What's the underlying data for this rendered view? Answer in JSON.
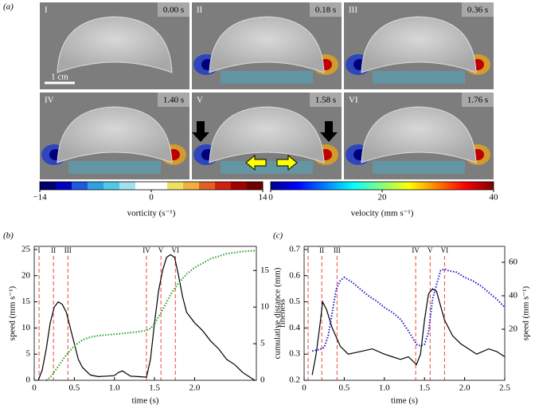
{
  "figure_a": {
    "label": "(a)",
    "frames": [
      {
        "label": "I",
        "time": "0.00 s"
      },
      {
        "label": "II",
        "time": "0.18 s"
      },
      {
        "label": "III",
        "time": "0.36 s"
      },
      {
        "label": "IV",
        "time": "1.40 s"
      },
      {
        "label": "V",
        "time": "1.58 s"
      },
      {
        "label": "VI",
        "time": "1.76 s"
      }
    ],
    "scale_bar": "1 cm",
    "colorbars": [
      {
        "label": "vorticity (s⁻¹)",
        "lim": [
          -14,
          14
        ],
        "ticks": [
          {
            "value": -14,
            "label": "−14"
          },
          0,
          14
        ]
      },
      {
        "label": "velocity (mm s⁻¹)",
        "lim": [
          0,
          40
        ],
        "ticks": [
          0,
          20,
          40
        ]
      }
    ]
  },
  "chart_data": [
    {
      "type": "line",
      "panel_label": "(b)",
      "xlabel": "time (s)",
      "ylabel": "speed (mm s⁻¹)",
      "y2label": "cumulative distance (mm)",
      "xlim": [
        0,
        2.77
      ],
      "xticks": [
        0,
        0.5,
        {
          "value": 1.0,
          "label": "1.0"
        },
        1.5,
        {
          "value": 2.0,
          "label": "2.0"
        }
      ],
      "ylim": [
        0,
        25.6
      ],
      "yticks": [
        0,
        5,
        10,
        15,
        20,
        25
      ],
      "y2lim": [
        0,
        18.3
      ],
      "y2ticks": [
        0,
        5,
        10,
        15
      ],
      "events": [
        {
          "label": "I",
          "time": 0.06
        },
        {
          "label": "II",
          "time": 0.24
        },
        {
          "label": "III",
          "time": 0.42
        },
        {
          "label": "IV",
          "time": 1.4
        },
        {
          "label": "V",
          "time": 1.58
        },
        {
          "label": "VI",
          "time": 1.76
        }
      ],
      "event_color": "#e8483c",
      "series": [
        {
          "color": "#000000",
          "style": "solid",
          "axis": "y",
          "x": [
            0.05,
            0.1,
            0.15,
            0.2,
            0.25,
            0.3,
            0.35,
            0.4,
            0.45,
            0.5,
            0.55,
            0.6,
            0.7,
            0.8,
            0.9,
            1.0,
            1.05,
            1.1,
            1.15,
            1.2,
            1.3,
            1.4,
            1.45,
            1.5,
            1.55,
            1.6,
            1.65,
            1.7,
            1.75,
            1.8,
            1.85,
            1.9,
            2.0,
            2.1,
            2.2,
            2.3,
            2.4,
            2.5,
            2.6,
            2.7,
            2.75
          ],
          "values": [
            0,
            2,
            6,
            11,
            14,
            15,
            14.5,
            13,
            10,
            7,
            4,
            2.5,
            1,
            0.7,
            0.8,
            0.9,
            1.5,
            1.8,
            1.3,
            0.8,
            0.7,
            0.6,
            4,
            11,
            17,
            21,
            23.5,
            24,
            23.5,
            20,
            16,
            13,
            11,
            9.5,
            7.5,
            6,
            4,
            3,
            1.5,
            0.5,
            0
          ]
        },
        {
          "color": "#22a022",
          "style": "dotted",
          "axis": "y2",
          "x": [
            0.15,
            0.2,
            0.3,
            0.4,
            0.5,
            0.6,
            0.7,
            0.8,
            1.0,
            1.2,
            1.4,
            1.45,
            1.5,
            1.6,
            1.7,
            1.8,
            1.9,
            2.0,
            2.2,
            2.4,
            2.6,
            2.75
          ],
          "values": [
            0,
            0.4,
            1.9,
            3.5,
            4.7,
            5.5,
            5.9,
            6.1,
            6.3,
            6.5,
            6.8,
            7.1,
            7.7,
            9.6,
            11.7,
            13.3,
            14.5,
            15.4,
            16.6,
            17.3,
            17.6,
            17.7
          ]
        }
      ]
    },
    {
      "type": "line",
      "panel_label": "(c)",
      "xlabel": "time (s)",
      "ylabel": "fineness",
      "y2label": "speed (mm s⁻¹)",
      "xlim": [
        0,
        2.5
      ],
      "xticks": [
        0,
        0.5,
        {
          "value": 1.0,
          "label": "1.0"
        },
        1.5,
        {
          "value": 2.0,
          "label": "2.0"
        },
        2.5
      ],
      "ylim": [
        0.2,
        0.712
      ],
      "yticks": [
        0.2,
        0.3,
        0.4,
        0.5,
        0.6,
        0.7
      ],
      "y2lim": [
        -10.5,
        69.5
      ],
      "y2ticks": [
        20,
        40,
        60
      ],
      "events": [
        {
          "label": "I",
          "time": 0.05
        },
        {
          "label": "II",
          "time": 0.22
        },
        {
          "label": "III",
          "time": 0.41
        },
        {
          "label": "IV",
          "time": 1.39
        },
        {
          "label": "V",
          "time": 1.57
        },
        {
          "label": "VI",
          "time": 1.75
        }
      ],
      "event_color": "#e8483c",
      "series": [
        {
          "color": "#000000",
          "style": "solid",
          "axis": "y",
          "x": [
            0.1,
            0.15,
            0.2,
            0.23,
            0.28,
            0.35,
            0.45,
            0.55,
            0.7,
            0.85,
            1.0,
            1.1,
            1.2,
            1.3,
            1.4,
            1.45,
            1.5,
            1.55,
            1.6,
            1.65,
            1.75,
            1.85,
            1.95,
            2.05,
            2.15,
            2.3,
            2.4,
            2.5
          ],
          "values": [
            0.22,
            0.3,
            0.42,
            0.5,
            0.47,
            0.4,
            0.33,
            0.3,
            0.31,
            0.32,
            0.3,
            0.29,
            0.28,
            0.29,
            0.26,
            0.3,
            0.43,
            0.53,
            0.55,
            0.54,
            0.43,
            0.37,
            0.34,
            0.32,
            0.3,
            0.32,
            0.31,
            0.29
          ]
        },
        {
          "color": "#1a1ad0",
          "style": "dotted",
          "axis": "y2",
          "x": [
            0.1,
            0.2,
            0.25,
            0.3,
            0.35,
            0.4,
            0.45,
            0.5,
            0.6,
            0.7,
            0.8,
            0.9,
            1.0,
            1.1,
            1.2,
            1.3,
            1.4,
            1.45,
            1.5,
            1.55,
            1.6,
            1.7,
            1.75,
            1.8,
            1.9,
            2.0,
            2.1,
            2.2,
            2.3,
            2.4,
            2.5
          ],
          "values": [
            7,
            8,
            9,
            16,
            30,
            44,
            49,
            51,
            48,
            44,
            40,
            37,
            33,
            30,
            26,
            19,
            11,
            10,
            11,
            18,
            38,
            55,
            56,
            55,
            54,
            51,
            49,
            46,
            42,
            38,
            33
          ]
        }
      ]
    }
  ]
}
